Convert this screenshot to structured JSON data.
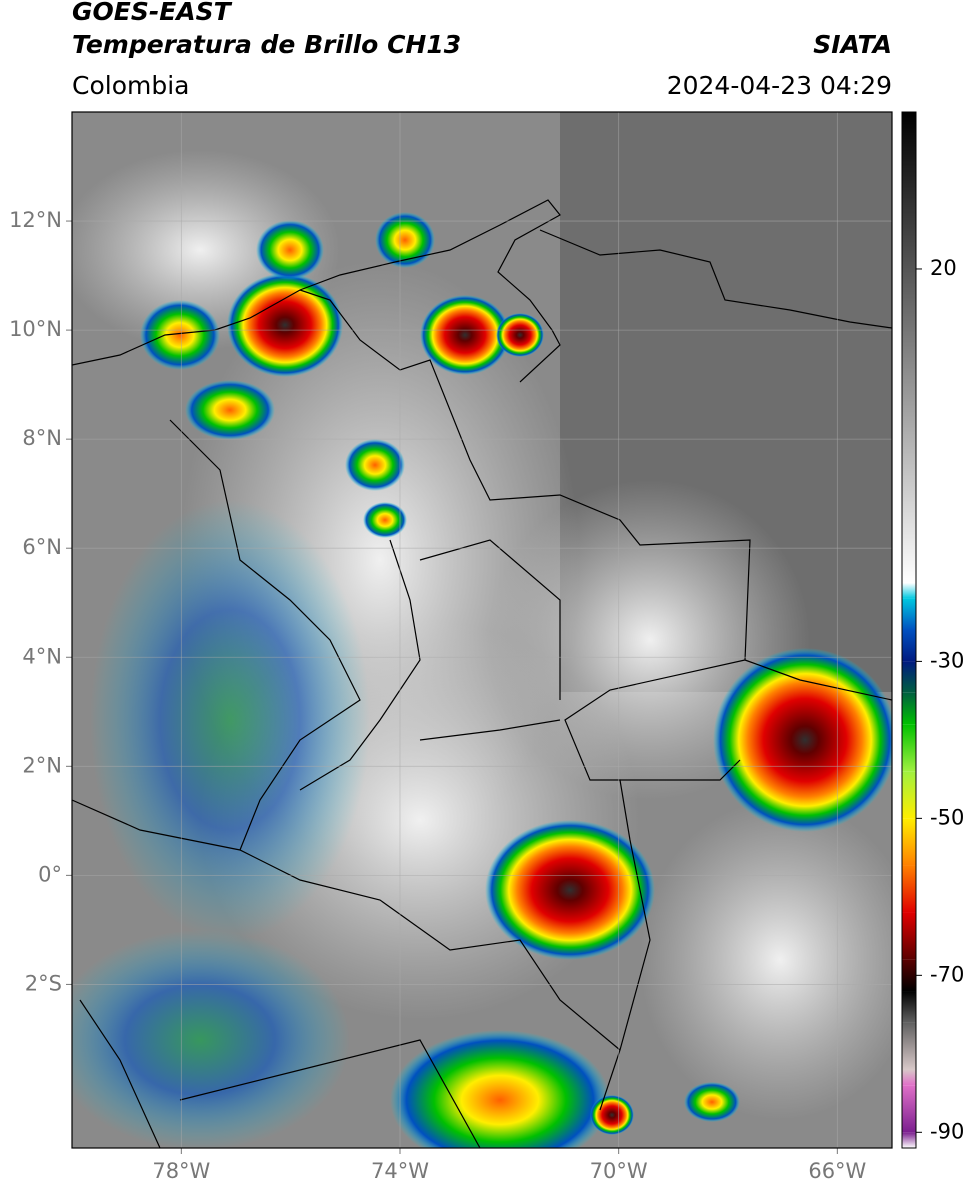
{
  "header": {
    "title": "GOES-EAST",
    "subtitle": "Temperatura de Brillo CH13",
    "source": "SIATA",
    "region": "Colombia",
    "datetime": "2024-04-23 04:29"
  },
  "map": {
    "xlim": [
      -80,
      -65
    ],
    "ylim": [
      -5,
      14
    ],
    "xticks": [
      {
        "value": -78,
        "label": "78°W"
      },
      {
        "value": -74,
        "label": "74°W"
      },
      {
        "value": -70,
        "label": "70°W"
      },
      {
        "value": -66,
        "label": "66°W"
      }
    ],
    "yticks": [
      {
        "value": 12,
        "label": "12°N"
      },
      {
        "value": 10,
        "label": "10°N"
      },
      {
        "value": 8,
        "label": "8°N"
      },
      {
        "value": 6,
        "label": "6°N"
      },
      {
        "value": 4,
        "label": "4°N"
      },
      {
        "value": 2,
        "label": "2°N"
      },
      {
        "value": 0,
        "label": "0°"
      },
      {
        "value": -2,
        "label": "2°S"
      }
    ],
    "grid": true
  },
  "colorbar": {
    "lim": [
      -92,
      40
    ],
    "ticks": [
      20,
      -30,
      -50,
      -70,
      -90
    ],
    "stops": [
      {
        "value": -92,
        "color": "#ffffff"
      },
      {
        "value": -90,
        "color": "#7b1f8f"
      },
      {
        "value": -84,
        "color": "#e070c8"
      },
      {
        "value": -82,
        "color": "#d8c8c8"
      },
      {
        "value": -76,
        "color": "#606060"
      },
      {
        "value": -72,
        "color": "#000000"
      },
      {
        "value": -68,
        "color": "#5a0000"
      },
      {
        "value": -62,
        "color": "#e00000"
      },
      {
        "value": -56,
        "color": "#ff8000"
      },
      {
        "value": -50,
        "color": "#ffee00"
      },
      {
        "value": -44,
        "color": "#a0f040"
      },
      {
        "value": -38,
        "color": "#00c000"
      },
      {
        "value": -34,
        "color": "#006040"
      },
      {
        "value": -30,
        "color": "#001a80"
      },
      {
        "value": -26,
        "color": "#0050c0"
      },
      {
        "value": -22,
        "color": "#00c8e0"
      },
      {
        "value": -20,
        "color": "#ffffff"
      },
      {
        "value": 40,
        "color": "#000000"
      }
    ]
  }
}
